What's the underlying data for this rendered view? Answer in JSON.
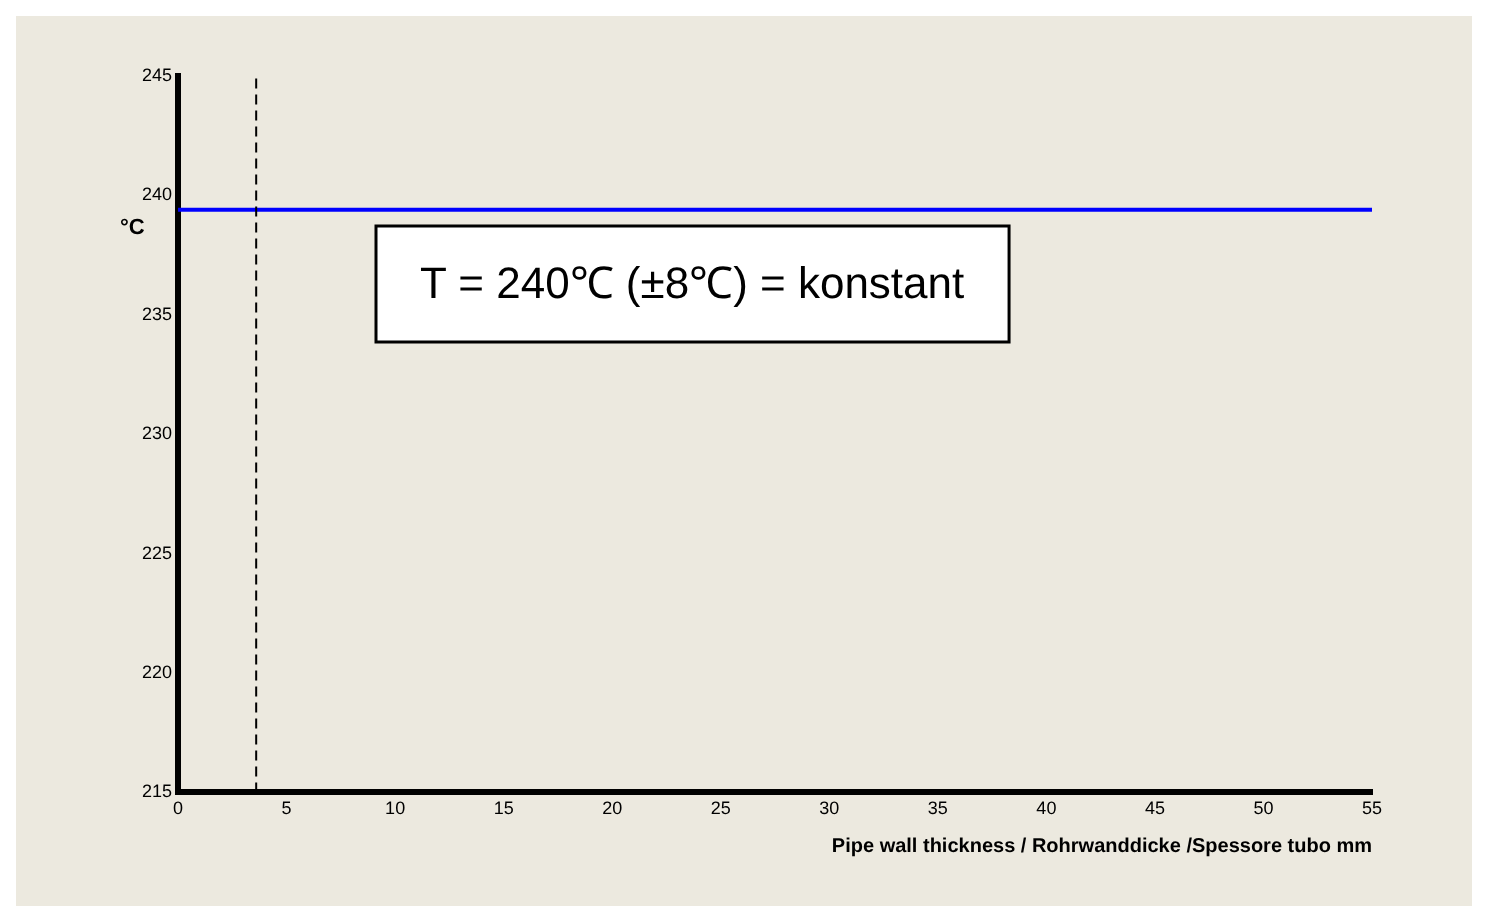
{
  "chart_data": {
    "type": "line",
    "xlabel": "Pipe wall thickness / Rohrwanddicke /Spessore tubo mm",
    "ylabel": "°C",
    "x": [
      0,
      55
    ],
    "series": [
      {
        "color": "#0000ff",
        "values": [
          239.4,
          239.4
        ]
      }
    ],
    "xlim": [
      0,
      55
    ],
    "xticks": [
      0,
      5,
      10,
      15,
      20,
      25,
      30,
      35,
      40,
      45,
      50,
      55
    ],
    "ylim": [
      215,
      245
    ],
    "yticks": [
      215,
      220,
      225,
      230,
      235,
      240,
      245
    ],
    "ref_lines": [
      {
        "axis": "x",
        "value": 3.6,
        "color": "#000000",
        "line_style": "dashed"
      }
    ],
    "annotations": [
      "T = 240℃ (±8℃) = konstant"
    ],
    "grid": false,
    "legend": false,
    "marker": "none",
    "line_style": "solid"
  }
}
